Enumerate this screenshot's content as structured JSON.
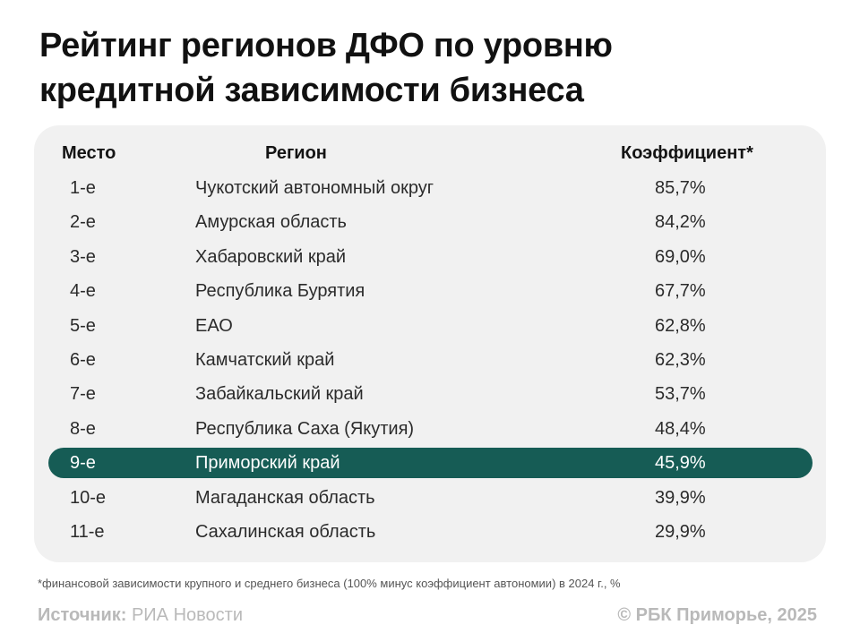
{
  "title": {
    "line1": "Рейтинг регионов ДФО по уровню",
    "line2": "кредитной зависимости бизнеса"
  },
  "chart_data": {
    "type": "table",
    "columns": [
      "Место",
      "Регион",
      "Коэффициент*"
    ],
    "rows": [
      {
        "rank": "1-е",
        "region": "Чукотский автономный округ",
        "value": "85,7%"
      },
      {
        "rank": "2-е",
        "region": "Амурская область",
        "value": "84,2%"
      },
      {
        "rank": "3-е",
        "region": "Хабаровский край",
        "value": "69,0%"
      },
      {
        "rank": "4-е",
        "region": "Республика Бурятия",
        "value": "67,7%"
      },
      {
        "rank": "5-е",
        "region": "ЕАО",
        "value": "62,8%"
      },
      {
        "rank": "6-е",
        "region": "Камчатский край",
        "value": "62,3%"
      },
      {
        "rank": "7-е",
        "region": "Забайкальский край",
        "value": "53,7%"
      },
      {
        "rank": "8-е",
        "region": "Республика Саха (Якутия)",
        "value": "48,4%"
      },
      {
        "rank": "9-е",
        "region": "Приморский край",
        "value": "45,9%"
      },
      {
        "rank": "10-е",
        "region": "Магаданская область",
        "value": "39,9%"
      },
      {
        "rank": "11-е",
        "region": "Сахалинская область",
        "value": "29,9%"
      }
    ],
    "highlighted_rank": "9-е"
  },
  "footnote": "*финансовой зависимости крупного и среднего бизнеса (100% минус коэффициент автономии) в 2024 г., %",
  "source": {
    "label": "Источник:",
    "value": "РИА Новости"
  },
  "copyright": "© РБК Приморье, 2025",
  "colors": {
    "highlight_row": "#165c55",
    "card_background": "#f1f1f1",
    "muted_text": "#b9b9b9"
  }
}
